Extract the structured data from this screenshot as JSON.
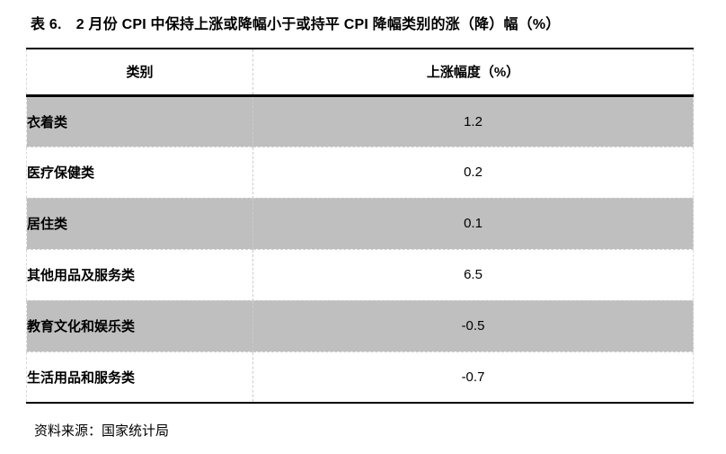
{
  "title": "表 6.　2 月份 CPI 中保持上涨或降幅小于或持平 CPI 降幅类别的涨（降）幅（%）",
  "table": {
    "headers": [
      "类别",
      "上涨幅度（%）"
    ],
    "rows": [
      {
        "category": "衣着类",
        "value": "1.2"
      },
      {
        "category": "医疗保健类",
        "value": "0.2"
      },
      {
        "category": "居住类",
        "value": "0.1"
      },
      {
        "category": "其他用品及服务类",
        "value": "6.5"
      },
      {
        "category": "教育文化和娱乐类",
        "value": "-0.5"
      },
      {
        "category": "生活用品和服务类",
        "value": "-0.7"
      }
    ]
  },
  "source": "资料来源：国家统计局",
  "colors": {
    "row_shaded": "#bfbfbf",
    "row_plain": "#ffffff",
    "border_heavy": "#000000",
    "divider": "#cccccc",
    "text": "#000000"
  }
}
